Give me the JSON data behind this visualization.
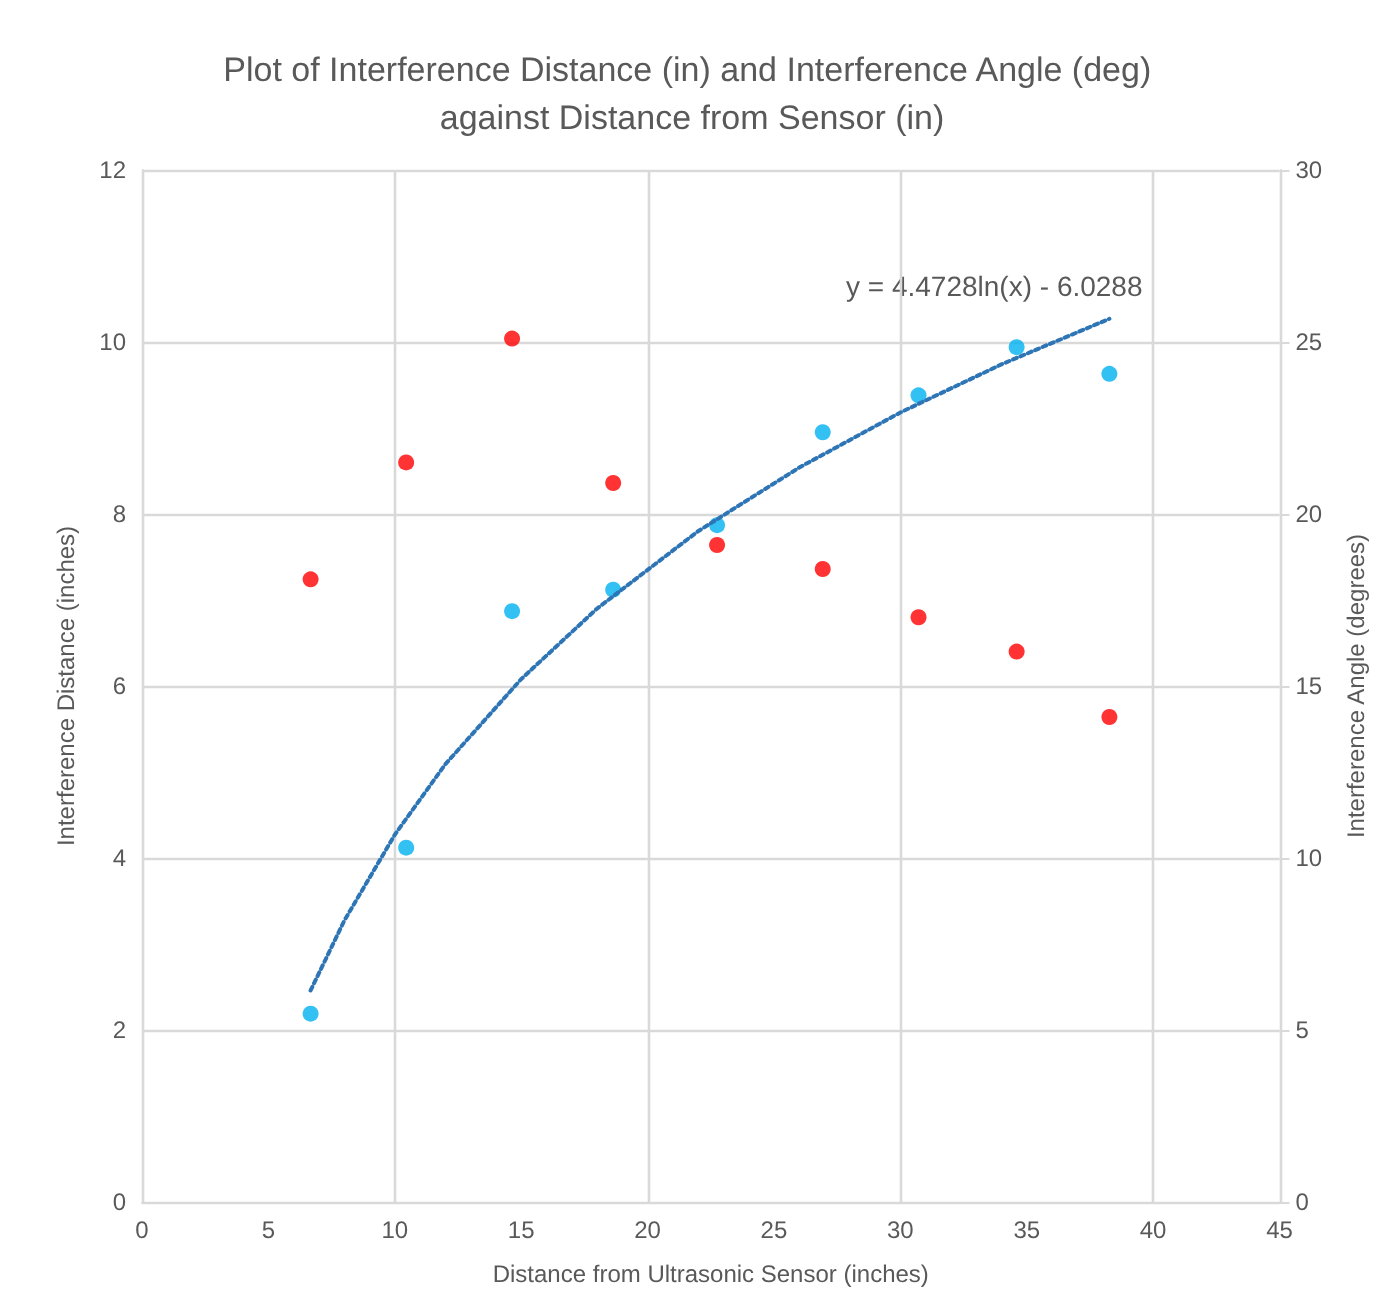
{
  "chart_data": {
    "type": "scatter",
    "title": "Plot of Interference Distance (in) and Interference Angle (deg) against Distance from Sensor (in)",
    "xlabel": "Distance from Ultrasonic Sensor (inches)",
    "ylabel": "Interference Distance (inches)",
    "y2label": "Interference Angle (degrees)",
    "x": [
      6.67,
      10.45,
      14.64,
      18.64,
      22.75,
      26.93,
      30.72,
      34.6,
      38.27
    ],
    "xlim": [
      0,
      45
    ],
    "xticks": [
      0,
      5,
      10,
      15,
      20,
      25,
      30,
      35,
      40,
      45
    ],
    "ylim": [
      0,
      12
    ],
    "yticks": [
      0,
      2,
      4,
      6,
      8,
      10,
      12
    ],
    "y2lim": [
      0,
      30
    ],
    "y2ticks": [
      0,
      5,
      10,
      15,
      20,
      25,
      30
    ],
    "grid": true,
    "marker": "circle",
    "annotations": [
      "y = 4.4728ln(x) - 6.0288"
    ],
    "series": [
      {
        "color": "#00b0f0",
        "values": [
          2.19,
          4.12,
          6.87,
          7.12,
          7.87,
          8.95,
          9.38,
          9.94,
          9.63
        ]
      },
      {
        "color": "#ff0000",
        "axis": "y2",
        "values": [
          18.1,
          21.5,
          25.1,
          20.9,
          19.1,
          18.4,
          17.0,
          16.0,
          14.1
        ]
      },
      {
        "type": "line",
        "color": "#2e75b6",
        "line_style": "dotted",
        "marker": "none",
        "x": [
          6.67,
          8,
          10,
          12,
          15,
          18,
          22,
          26,
          30,
          34,
          38.27
        ],
        "values": [
          2.46,
          3.27,
          4.27,
          5.09,
          6.08,
          6.9,
          7.8,
          8.54,
          9.18,
          9.74,
          10.27
        ]
      }
    ]
  }
}
